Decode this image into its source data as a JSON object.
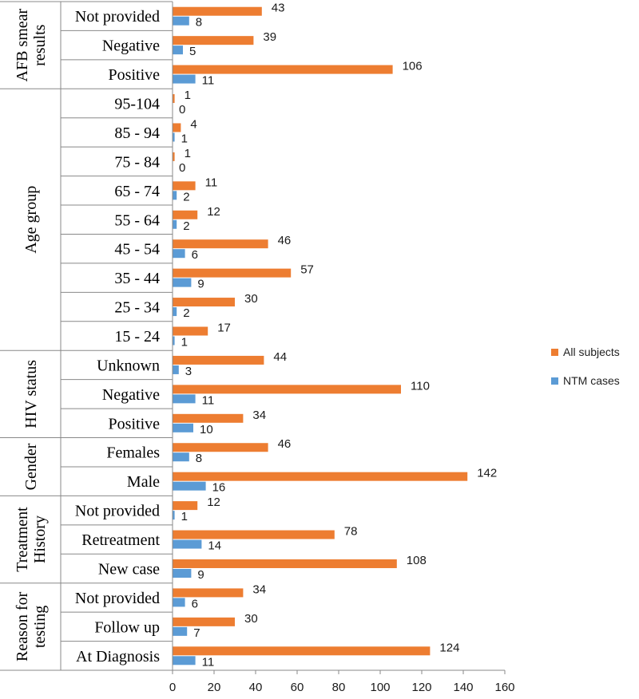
{
  "chart_data": {
    "type": "bar",
    "orientation": "horizontal",
    "xlim": [
      0,
      160
    ],
    "x_ticks": [
      0,
      20,
      40,
      60,
      80,
      100,
      120,
      140,
      160
    ],
    "groups": [
      {
        "label": "AFB smear results",
        "lines": [
          "AFB smear",
          "results"
        ],
        "categories": [
          "Not provided",
          "Negative",
          "Positive"
        ]
      },
      {
        "label": "Age group",
        "lines": [
          "Age group"
        ],
        "categories": [
          "95-104",
          "85 - 94",
          "75 - 84",
          "65 - 74",
          "55 - 64",
          "45 - 54",
          "35 - 44",
          "25 - 34",
          "15 - 24"
        ]
      },
      {
        "label": "HIV status",
        "lines": [
          "HIV status"
        ],
        "categories": [
          "Unknown",
          "Negative",
          "Positive"
        ]
      },
      {
        "label": "Gender",
        "lines": [
          "Gender"
        ],
        "categories": [
          "Females",
          "Male"
        ]
      },
      {
        "label": "Treatment History",
        "lines": [
          "Treatment",
          "History"
        ],
        "categories": [
          "Not provided",
          "Retreatment",
          "New case"
        ]
      },
      {
        "label": "Reason for testing",
        "lines": [
          "Reason for",
          "testing"
        ],
        "categories": [
          "Not provided",
          "Follow up",
          "At Diagnosis"
        ]
      }
    ],
    "series": [
      {
        "name": "All subjects",
        "color": "#ED7D31",
        "values": [
          43,
          39,
          106,
          1,
          4,
          1,
          11,
          12,
          46,
          57,
          30,
          17,
          44,
          110,
          34,
          46,
          142,
          12,
          78,
          108,
          34,
          30,
          124
        ]
      },
      {
        "name": "NTM cases",
        "color": "#5B9BD5",
        "values": [
          8,
          5,
          11,
          0,
          1,
          0,
          2,
          2,
          6,
          9,
          2,
          1,
          3,
          11,
          10,
          8,
          16,
          1,
          14,
          9,
          6,
          7,
          11
        ]
      }
    ],
    "legend_position": "right"
  }
}
